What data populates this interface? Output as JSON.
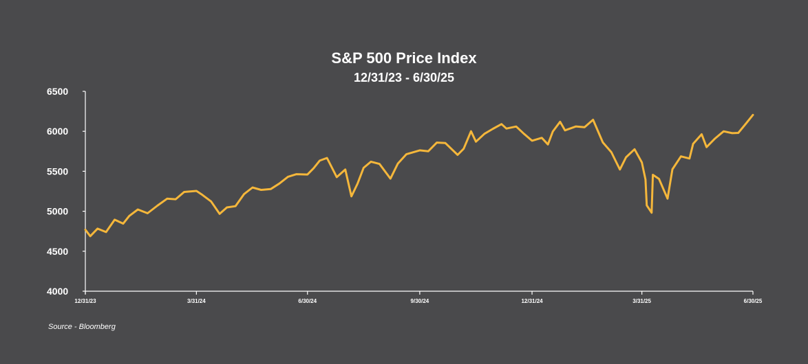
{
  "chart_data": {
    "type": "line",
    "title": "S&P 500 Price Index",
    "subtitle": "12/31/23 - 6/30/25",
    "xlabel": "",
    "ylabel": "",
    "ylim": [
      4000,
      6500
    ],
    "yticks": [
      "6500",
      "6000",
      "5500",
      "5000",
      "4500",
      "4000"
    ],
    "xticks": [
      "12/31/23",
      "3/31/24",
      "6/30/24",
      "9/30/24",
      "12/31/24",
      "3/31/25",
      "6/30/25"
    ],
    "grid": false,
    "legend": "none",
    "line_color": "#f5b73b",
    "axis_color": "#ffffff",
    "background_color": "#4a4a4c",
    "series": [
      {
        "x": [
          "2023-12-31",
          "2024-01-04",
          "2024-01-10",
          "2024-01-17",
          "2024-01-24",
          "2024-01-31",
          "2024-02-05",
          "2024-02-12",
          "2024-02-20",
          "2024-02-28",
          "2024-03-07",
          "2024-03-14",
          "2024-03-21",
          "2024-03-31",
          "2024-04-05",
          "2024-04-12",
          "2024-04-19",
          "2024-04-25",
          "2024-05-02",
          "2024-05-09",
          "2024-05-16",
          "2024-05-23",
          "2024-05-31",
          "2024-06-07",
          "2024-06-14",
          "2024-06-21",
          "2024-06-30",
          "2024-07-05",
          "2024-07-10",
          "2024-07-16",
          "2024-07-24",
          "2024-07-31",
          "2024-08-05",
          "2024-08-10",
          "2024-08-15",
          "2024-08-21",
          "2024-08-28",
          "2024-09-06",
          "2024-09-12",
          "2024-09-19",
          "2024-09-30",
          "2024-10-07",
          "2024-10-14",
          "2024-10-21",
          "2024-10-31",
          "2024-11-05",
          "2024-11-11",
          "2024-11-15",
          "2024-11-22",
          "2024-11-29",
          "2024-12-06",
          "2024-12-10",
          "2024-12-18",
          "2024-12-24",
          "2024-12-31",
          "2025-01-08",
          "2025-01-13",
          "2025-01-17",
          "2025-01-23",
          "2025-01-27",
          "2025-02-05",
          "2025-02-12",
          "2025-02-19",
          "2025-02-27",
          "2025-03-06",
          "2025-03-10",
          "2025-03-13",
          "2025-03-18",
          "2025-03-25",
          "2025-03-31",
          "2025-04-03",
          "2025-04-04",
          "2025-04-08",
          "2025-04-09",
          "2025-04-14",
          "2025-04-21",
          "2025-04-25",
          "2025-05-02",
          "2025-05-09",
          "2025-05-12",
          "2025-05-19",
          "2025-05-23",
          "2025-05-30",
          "2025-06-06",
          "2025-06-13",
          "2025-06-18",
          "2025-06-24",
          "2025-06-30"
        ],
        "values": [
          4770,
          4688,
          4783,
          4740,
          4894,
          4845,
          4942,
          5022,
          4975,
          5070,
          5157,
          5150,
          5241,
          5254,
          5204,
          5123,
          4967,
          5048,
          5064,
          5214,
          5297,
          5267,
          5278,
          5347,
          5431,
          5464,
          5460,
          5537,
          5633,
          5667,
          5427,
          5522,
          5186,
          5344,
          5543,
          5620,
          5592,
          5408,
          5595,
          5713,
          5762,
          5751,
          5859,
          5853,
          5705,
          5782,
          6001,
          5870,
          5969,
          6032,
          6090,
          6034,
          6060,
          5974,
          5882,
          5918,
          5836,
          5997,
          6119,
          6012,
          6061,
          6051,
          6144,
          5861,
          5739,
          5614,
          5522,
          5675,
          5776,
          5611,
          5396,
          5074,
          4982,
          5456,
          5405,
          5158,
          5525,
          5686,
          5660,
          5844,
          5963,
          5802,
          5911,
          6000,
          5977,
          5980,
          6092,
          6205
        ]
      }
    ],
    "source": "Source - Bloomberg"
  }
}
